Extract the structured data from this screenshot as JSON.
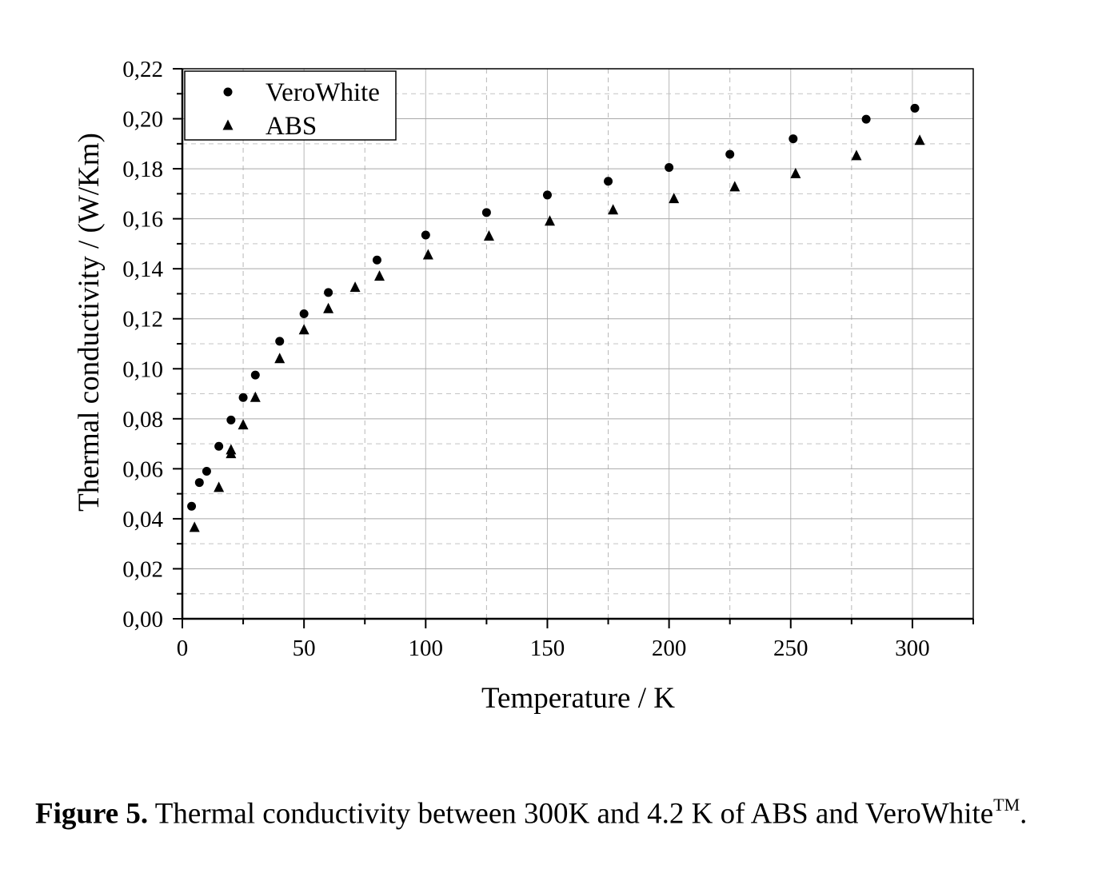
{
  "chart_data": {
    "type": "scatter",
    "xlabel": "Temperature / K",
    "ylabel": "Thermal conductivity / (W/Km)",
    "xlim": [
      0,
      325
    ],
    "ylim": [
      0,
      0.22
    ],
    "x_ticks": [
      0,
      50,
      100,
      150,
      200,
      250,
      300
    ],
    "x_tick_labels": [
      "0",
      "50",
      "100",
      "150",
      "200",
      "250",
      "300"
    ],
    "y_ticks": [
      0,
      0.02,
      0.04,
      0.06,
      0.08,
      0.1,
      0.12,
      0.14,
      0.16,
      0.18,
      0.2,
      0.22
    ],
    "y_tick_labels": [
      "0,00",
      "0,02",
      "0,04",
      "0,06",
      "0,08",
      "0,10",
      "0,12",
      "0,14",
      "0,16",
      "0,18",
      "0,20",
      "0,22"
    ],
    "grid": true,
    "legend_position": "top-left",
    "series": [
      {
        "name": "VeroWhite",
        "marker": "circle",
        "color": "#000000",
        "points": [
          [
            3.8,
            0.045
          ],
          [
            7,
            0.0545
          ],
          [
            10,
            0.059
          ],
          [
            15,
            0.069
          ],
          [
            20,
            0.0795
          ],
          [
            25,
            0.0885
          ],
          [
            30,
            0.0975
          ],
          [
            40,
            0.111
          ],
          [
            50,
            0.122
          ],
          [
            60,
            0.1305
          ],
          [
            80,
            0.1435
          ],
          [
            100,
            0.1535
          ],
          [
            125,
            0.1625
          ],
          [
            150,
            0.1695
          ],
          [
            175,
            0.175
          ],
          [
            200,
            0.1805
          ],
          [
            225,
            0.1858
          ],
          [
            251,
            0.192
          ],
          [
            281,
            0.1998
          ],
          [
            301,
            0.2042
          ]
        ]
      },
      {
        "name": "ABS",
        "marker": "triangle",
        "color": "#000000",
        "points": [
          [
            5,
            0.0365
          ],
          [
            15,
            0.0525
          ],
          [
            20,
            0.066
          ],
          [
            20,
            0.0675
          ],
          [
            25,
            0.0775
          ],
          [
            30,
            0.0885
          ],
          [
            40,
            0.104
          ],
          [
            50,
            0.1155
          ],
          [
            60,
            0.124
          ],
          [
            71,
            0.1325
          ],
          [
            81,
            0.137
          ],
          [
            101,
            0.1455
          ],
          [
            126,
            0.153
          ],
          [
            151,
            0.159
          ],
          [
            177,
            0.1635
          ],
          [
            202,
            0.168
          ],
          [
            227,
            0.1727
          ],
          [
            252,
            0.178
          ],
          [
            277,
            0.1852
          ],
          [
            303,
            0.1913
          ]
        ]
      }
    ]
  },
  "caption": {
    "label": "Figure 5.",
    "text": " Thermal conductivity between 300K and 4.2 K of ABS and VeroWhite",
    "superscript": "TM",
    "end": "."
  }
}
